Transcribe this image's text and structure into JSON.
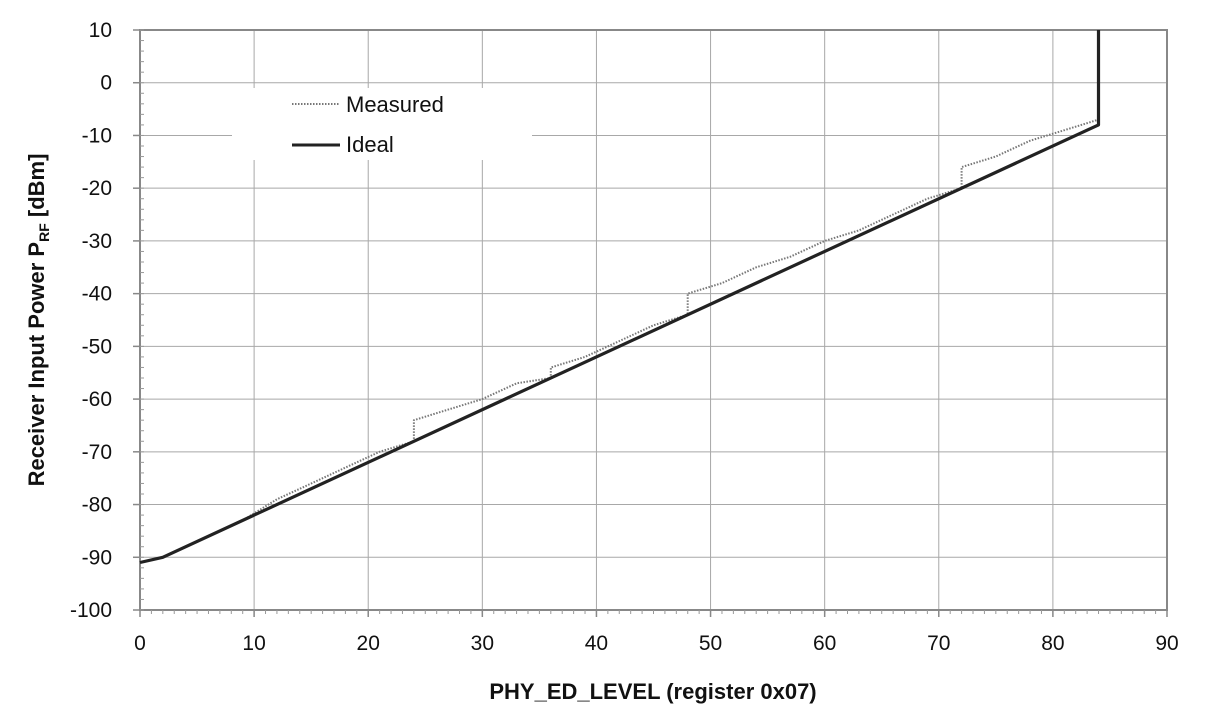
{
  "chart_data": {
    "type": "line",
    "title": "",
    "xlabel": "PHY_ED_LEVEL (register 0x07)",
    "ylabel_main": "Receiver Input Power P",
    "ylabel_sub": "RF",
    "ylabel_unit": " [dBm]",
    "xlim": [
      0,
      90
    ],
    "ylim": [
      -100,
      10
    ],
    "x_ticks": [
      "0",
      "10",
      "20",
      "30",
      "40",
      "50",
      "60",
      "70",
      "80",
      "90"
    ],
    "y_ticks": [
      "10",
      "0",
      "-10",
      "-20",
      "-30",
      "-40",
      "-50",
      "-60",
      "-70",
      "-80",
      "-90",
      "-100"
    ],
    "grid": true,
    "legend_position": "upper-left",
    "series": [
      {
        "name": "Measured",
        "style": "dotted",
        "color": "#777777",
        "x": [
          0,
          2,
          3,
          6,
          9,
          12,
          15,
          18,
          21,
          24,
          24,
          27,
          30,
          33,
          36,
          36,
          39,
          42,
          45,
          48,
          48,
          51,
          54,
          57,
          60,
          63,
          66,
          69,
          72,
          72,
          75,
          78,
          81,
          84,
          84
        ],
        "y": [
          -91,
          -90,
          -89,
          -86,
          -83,
          -79,
          -76,
          -73,
          -70,
          -68,
          -64,
          -62,
          -60,
          -57,
          -56,
          -54,
          -52,
          -49,
          -46,
          -44,
          -40,
          -38,
          -35,
          -33,
          -30,
          -28,
          -25,
          -22,
          -20,
          -16,
          -14,
          -11,
          -9,
          -7,
          10
        ]
      },
      {
        "name": "Ideal",
        "style": "solid",
        "color": "#222222",
        "x": [
          0,
          2,
          84,
          84
        ],
        "y": [
          -91,
          -90,
          -8,
          10
        ]
      }
    ]
  }
}
